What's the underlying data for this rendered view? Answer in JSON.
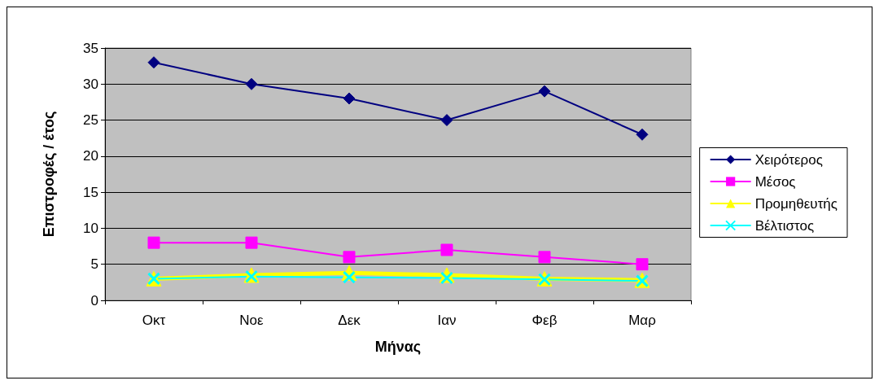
{
  "chart_data": {
    "type": "line",
    "xlabel": "Μήνας",
    "ylabel": "Επιστροφές / έτος",
    "categories": [
      "Οκτ",
      "Νοε",
      "Δεκ",
      "Ιαν",
      "Φεβ",
      "Μαρ"
    ],
    "series": [
      {
        "name": "Χειρότερος",
        "color": "#000080",
        "marker": "diamond",
        "values": [
          33,
          30,
          28,
          25,
          29,
          23
        ]
      },
      {
        "name": "Μέσος",
        "color": "#ff00ff",
        "marker": "square",
        "values": [
          8,
          8,
          6,
          7,
          6,
          5
        ]
      },
      {
        "name": "Προμηθευτής",
        "color": "#ffff00",
        "marker": "triangle",
        "values": [
          3,
          3.5,
          3.8,
          3.5,
          3,
          2.8
        ]
      },
      {
        "name": "Βέλτιστος",
        "color": "#00ffff",
        "marker": "cross",
        "values": [
          3,
          3.3,
          3.2,
          3.1,
          2.9,
          2.7
        ]
      }
    ],
    "ylim": [
      0,
      35
    ],
    "yticks": [
      0,
      5,
      10,
      15,
      20,
      25,
      30,
      35
    ],
    "grid": "y",
    "legend": "right"
  }
}
